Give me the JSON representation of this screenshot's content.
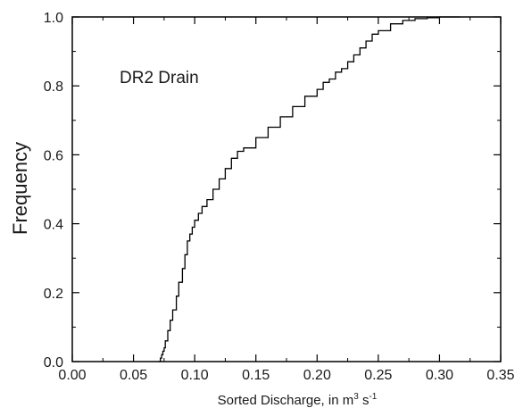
{
  "chart_data": {
    "type": "line",
    "step": true,
    "ylabel": "Frequency",
    "xlabel_parts": [
      "Sorted Discharge, in m",
      "3",
      " s",
      "-1"
    ],
    "annotation": "DR2 Drain",
    "xlim": [
      0.0,
      0.35
    ],
    "ylim": [
      0.0,
      1.0
    ],
    "xticks": [
      "0.00",
      "0.05",
      "0.10",
      "0.15",
      "0.20",
      "0.25",
      "0.30",
      "0.35"
    ],
    "yticks": [
      "0.0",
      "0.2",
      "0.4",
      "0.6",
      "0.8",
      "1.0"
    ],
    "grid": false,
    "legend": "none",
    "series": [
      {
        "color": "#000000",
        "x": [
          0.07,
          0.072,
          0.073,
          0.074,
          0.075,
          0.076,
          0.078,
          0.08,
          0.082,
          0.085,
          0.087,
          0.09,
          0.092,
          0.094,
          0.096,
          0.098,
          0.1,
          0.103,
          0.106,
          0.11,
          0.115,
          0.12,
          0.125,
          0.13,
          0.135,
          0.14,
          0.15,
          0.16,
          0.17,
          0.18,
          0.19,
          0.2,
          0.205,
          0.21,
          0.215,
          0.22,
          0.225,
          0.23,
          0.235,
          0.24,
          0.245,
          0.25,
          0.26,
          0.27,
          0.28,
          0.29,
          0.3,
          0.31
        ],
        "y": [
          0.0,
          0.01,
          0.02,
          0.03,
          0.04,
          0.06,
          0.09,
          0.12,
          0.15,
          0.19,
          0.23,
          0.27,
          0.31,
          0.35,
          0.37,
          0.39,
          0.41,
          0.43,
          0.45,
          0.47,
          0.5,
          0.53,
          0.56,
          0.59,
          0.61,
          0.62,
          0.65,
          0.68,
          0.71,
          0.74,
          0.77,
          0.79,
          0.81,
          0.82,
          0.84,
          0.85,
          0.87,
          0.89,
          0.91,
          0.93,
          0.95,
          0.96,
          0.98,
          0.99,
          0.995,
          0.998,
          1.0,
          1.0
        ]
      }
    ]
  }
}
